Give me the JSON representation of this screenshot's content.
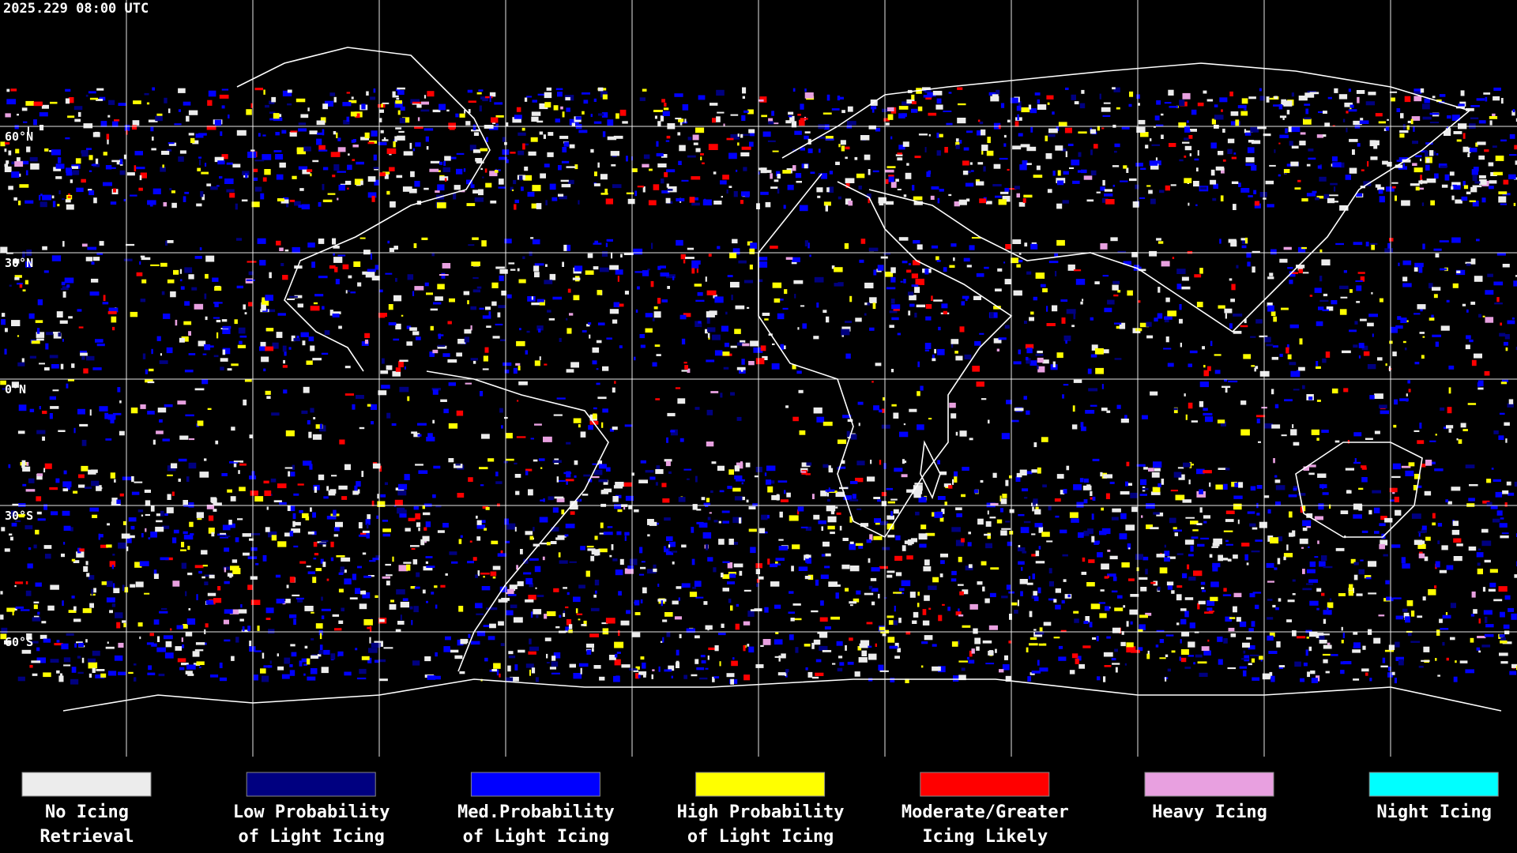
{
  "header": {
    "timestamp": "2025.229 08:00 UTC"
  },
  "map": {
    "latitude_labels": [
      "60°N",
      "30°N",
      "0°N",
      "30°S",
      "60°S"
    ]
  },
  "legend": [
    {
      "label": [
        "No Icing",
        "Retrieval"
      ],
      "color": "#ececec"
    },
    {
      "label": [
        "Low Probability",
        "of Light Icing"
      ],
      "color": "#000080"
    },
    {
      "label": [
        "Med.Probability",
        "of Light Icing"
      ],
      "color": "#0000ff"
    },
    {
      "label": [
        "High Probability",
        "of Light Icing"
      ],
      "color": "#ffff00"
    },
    {
      "label": [
        "Moderate/Greater",
        "Icing Likely"
      ],
      "color": "#ff0000"
    },
    {
      "label": [
        "Heavy Icing"
      ],
      "color": "#e8a0e0"
    },
    {
      "label": [
        "Night Icing"
      ],
      "color": "#00ffff"
    }
  ]
}
